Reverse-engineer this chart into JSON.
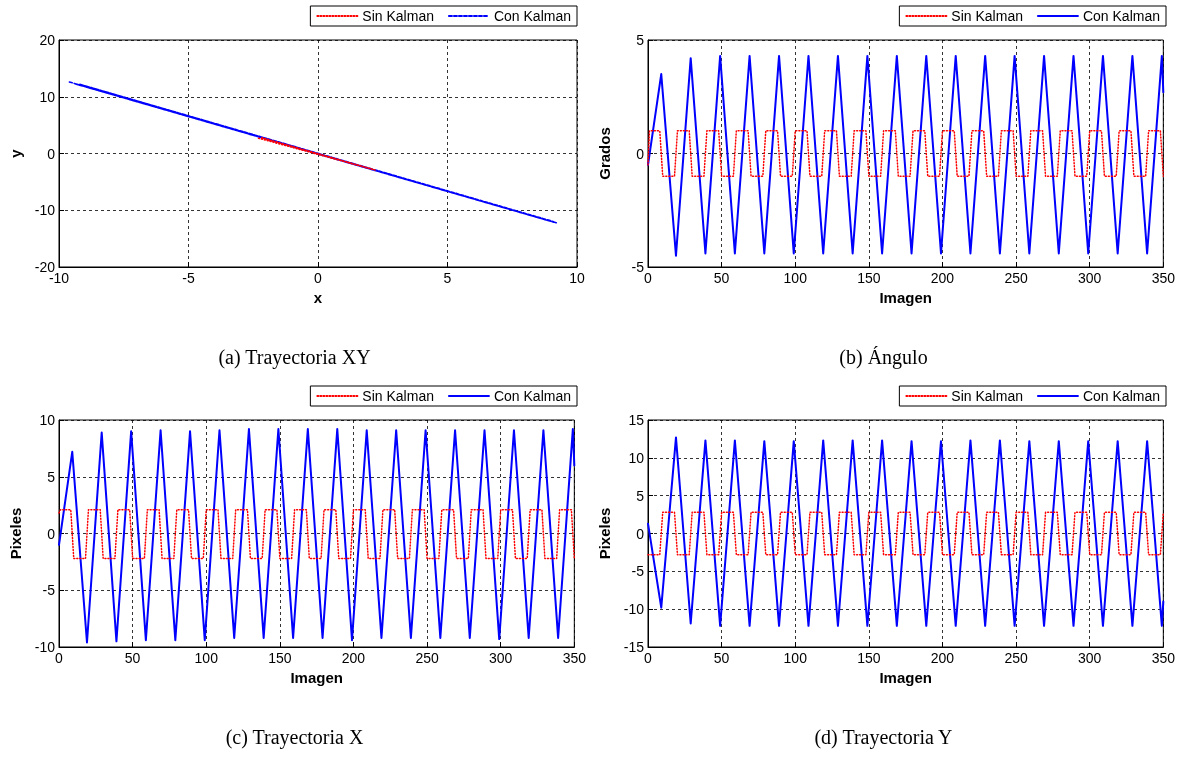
{
  "chart_data": [
    {
      "type": "line",
      "title": "(a) Trayectoria XY",
      "xlabel": "x",
      "ylabel": "y",
      "xlim": [
        -10,
        10
      ],
      "xticks": [
        -10,
        -5,
        0,
        5,
        10
      ],
      "ylim": [
        -20,
        20
      ],
      "yticks": [
        -20,
        -10,
        0,
        10,
        20
      ],
      "grid": true,
      "legend": "top right",
      "marker": "none",
      "series": [
        {
          "name": "Sin Kalman",
          "color": "#ff0000",
          "line_style": "dotted",
          "x": [
            -2.3,
            2.2,
            -2.2,
            2.1
          ],
          "values": [
            2.7,
            -2.9,
            2.8,
            -2.8
          ]
        },
        {
          "name": "Con Kalman",
          "color": "#0000ff",
          "line_style": "dashed",
          "x": [
            -9.6,
            9.2,
            -9.4,
            9.1,
            -9.3,
            9.2,
            -9.2,
            9.1
          ],
          "values": [
            12.6,
            -12.2,
            12.3,
            -12.1,
            12.2,
            -12.2,
            12.2,
            -12.0
          ]
        }
      ]
    },
    {
      "type": "line",
      "title": "(b) Ángulo",
      "xlabel": "Imagen",
      "ylabel": "Grados",
      "xlim": [
        0,
        350
      ],
      "xticks": [
        0,
        50,
        100,
        150,
        200,
        250,
        300,
        350
      ],
      "ylim": [
        -5,
        5
      ],
      "yticks": [
        -5,
        0,
        5
      ],
      "grid": true,
      "legend": "top right",
      "marker": "none",
      "series": [
        {
          "name": "Sin Kalman",
          "color": "#ff0000",
          "line_style": "dotted",
          "x": [
            0,
            1,
            8,
            10,
            18,
            20,
            28,
            30,
            38,
            40,
            48,
            50,
            58,
            60,
            68,
            70,
            78,
            80,
            88,
            90,
            98,
            100,
            108,
            110,
            118,
            120,
            128,
            130,
            138,
            140,
            148,
            150,
            158,
            160,
            168,
            170,
            178,
            180,
            188,
            190,
            198,
            200,
            208,
            210,
            218,
            220,
            228,
            230,
            238,
            240,
            248,
            250,
            258,
            260,
            268,
            270,
            278,
            280,
            288,
            290,
            298,
            300,
            308,
            310,
            318,
            320,
            328,
            330,
            338,
            340,
            348,
            350
          ],
          "values": [
            -0.5,
            1,
            1,
            -1,
            -1,
            1,
            1,
            -1,
            -1,
            1,
            1,
            -1,
            -1,
            1,
            1,
            -1,
            -1,
            1,
            1,
            -1,
            -1,
            1,
            1,
            -1,
            -1,
            1,
            1,
            -1,
            -1,
            1,
            1,
            -1,
            -1,
            1,
            1,
            -1,
            -1,
            1,
            1,
            -1,
            -1,
            1,
            1,
            -1,
            -1,
            1,
            1,
            -1,
            -1,
            1,
            1,
            -1,
            -1,
            1,
            1,
            -1,
            -1,
            1,
            1,
            -1,
            -1,
            1,
            1,
            -1,
            -1,
            1,
            1,
            -1,
            -1,
            1,
            1,
            -1
          ]
        },
        {
          "name": "Con Kalman",
          "color": "#0000ff",
          "line_style": "solid",
          "x": [
            0,
            9,
            19,
            29,
            39,
            49,
            59,
            69,
            79,
            89,
            99,
            109,
            119,
            129,
            139,
            149,
            159,
            169,
            179,
            189,
            199,
            209,
            219,
            229,
            239,
            249,
            259,
            269,
            279,
            289,
            299,
            309,
            319,
            329,
            339,
            349,
            350
          ],
          "values": [
            -0.5,
            3.5,
            -4.5,
            4.2,
            -4.4,
            4.3,
            -4.4,
            4.3,
            -4.4,
            4.3,
            -4.4,
            4.3,
            -4.4,
            4.3,
            -4.4,
            4.3,
            -4.4,
            4.3,
            -4.4,
            4.3,
            -4.4,
            4.3,
            -4.4,
            4.3,
            -4.4,
            4.3,
            -4.4,
            4.3,
            -4.4,
            4.3,
            -4.4,
            4.3,
            -4.4,
            4.3,
            -4.4,
            4.3,
            2.7
          ]
        }
      ]
    },
    {
      "type": "line",
      "title": "(c) Trayectoria X",
      "xlabel": "Imagen",
      "ylabel": "Pixeles",
      "xlim": [
        0,
        350
      ],
      "xticks": [
        0,
        50,
        100,
        150,
        200,
        250,
        300,
        350
      ],
      "ylim": [
        -10,
        10
      ],
      "yticks": [
        -10,
        -5,
        0,
        5,
        10
      ],
      "grid": true,
      "legend": "top right",
      "marker": "none",
      "series": [
        {
          "name": "Sin Kalman",
          "color": "#ff0000",
          "line_style": "dotted",
          "x": [
            0,
            1,
            8,
            10,
            18,
            20,
            28,
            30,
            38,
            40,
            48,
            50,
            58,
            60,
            68,
            70,
            78,
            80,
            88,
            90,
            98,
            100,
            108,
            110,
            118,
            120,
            128,
            130,
            138,
            140,
            148,
            150,
            158,
            160,
            168,
            170,
            178,
            180,
            188,
            190,
            198,
            200,
            208,
            210,
            218,
            220,
            228,
            230,
            238,
            240,
            248,
            250,
            258,
            260,
            268,
            270,
            278,
            280,
            288,
            290,
            298,
            300,
            308,
            310,
            318,
            320,
            328,
            330,
            338,
            340,
            348,
            350
          ],
          "values": [
            1.8,
            2.1,
            2.1,
            -2.2,
            -2.2,
            2.1,
            2.1,
            -2.2,
            -2.2,
            2.1,
            2.1,
            -2.2,
            -2.2,
            2.1,
            2.1,
            -2.2,
            -2.2,
            2.1,
            2.1,
            -2.2,
            -2.2,
            2.1,
            2.1,
            -2.2,
            -2.2,
            2.1,
            2.1,
            -2.2,
            -2.2,
            2.1,
            2.1,
            -2.2,
            -2.2,
            2.1,
            2.1,
            -2.2,
            -2.2,
            2.1,
            2.1,
            -2.2,
            -2.2,
            2.1,
            2.1,
            -2.2,
            -2.2,
            2.1,
            2.1,
            -2.2,
            -2.2,
            2.1,
            2.1,
            -2.2,
            -2.2,
            2.1,
            2.1,
            -2.2,
            -2.2,
            2.1,
            2.1,
            -2.2,
            -2.2,
            2.1,
            2.1,
            -2.2,
            -2.2,
            2.1,
            2.1,
            -2.2,
            -2.2,
            2.1,
            2.1,
            -2.2
          ]
        },
        {
          "name": "Con Kalman",
          "color": "#0000ff",
          "line_style": "solid",
          "x": [
            0,
            9,
            19,
            29,
            39,
            49,
            59,
            69,
            79,
            89,
            99,
            109,
            119,
            129,
            139,
            149,
            159,
            169,
            179,
            189,
            199,
            209,
            219,
            229,
            239,
            249,
            259,
            269,
            279,
            289,
            299,
            309,
            319,
            329,
            339,
            349,
            350
          ],
          "values": [
            -1,
            7.2,
            -9.6,
            8.9,
            -9.5,
            9.0,
            -9.4,
            9.1,
            -9.4,
            9.0,
            -9.4,
            9.1,
            -9.2,
            9.2,
            -9.2,
            9.2,
            -9.2,
            9.2,
            -9.2,
            9.2,
            -9.4,
            9.1,
            -9.2,
            9.1,
            -9.2,
            9.1,
            -9.2,
            9.1,
            -9.2,
            9.1,
            -9.3,
            9.1,
            -9.2,
            9.1,
            -9.2,
            9.2,
            6.0
          ]
        }
      ]
    },
    {
      "type": "line",
      "title": "(d) Trayectoria Y",
      "xlabel": "Imagen",
      "ylabel": "Pixeles",
      "xlim": [
        0,
        350
      ],
      "xticks": [
        0,
        50,
        100,
        150,
        200,
        250,
        300,
        350
      ],
      "ylim": [
        -15,
        15
      ],
      "yticks": [
        -15,
        -10,
        -5,
        0,
        5,
        10,
        15
      ],
      "grid": true,
      "legend": "top right",
      "marker": "none",
      "series": [
        {
          "name": "Sin Kalman",
          "color": "#ff0000",
          "line_style": "dotted",
          "x": [
            0,
            1,
            8,
            10,
            18,
            20,
            28,
            30,
            38,
            40,
            48,
            50,
            58,
            60,
            68,
            70,
            78,
            80,
            88,
            90,
            98,
            100,
            108,
            110,
            118,
            120,
            128,
            130,
            138,
            140,
            148,
            150,
            158,
            160,
            168,
            170,
            178,
            180,
            188,
            190,
            198,
            200,
            208,
            210,
            218,
            220,
            228,
            230,
            238,
            240,
            248,
            250,
            258,
            260,
            268,
            270,
            278,
            280,
            288,
            290,
            298,
            300,
            308,
            310,
            318,
            320,
            328,
            330,
            338,
            340,
            348,
            350
          ],
          "values": [
            -2.8,
            -2.8,
            -2.8,
            2.8,
            2.8,
            -2.8,
            -2.8,
            2.8,
            2.8,
            -2.8,
            -2.8,
            2.8,
            2.8,
            -2.8,
            -2.8,
            2.8,
            2.8,
            -2.8,
            -2.8,
            2.8,
            2.8,
            -2.8,
            -2.8,
            2.8,
            2.8,
            -2.8,
            -2.8,
            2.8,
            2.8,
            -2.8,
            -2.8,
            2.8,
            2.8,
            -2.8,
            -2.8,
            2.8,
            2.8,
            -2.8,
            -2.8,
            2.8,
            2.8,
            -2.8,
            -2.8,
            2.8,
            2.8,
            -2.8,
            -2.8,
            2.8,
            2.8,
            -2.8,
            -2.8,
            2.8,
            2.8,
            -2.8,
            -2.8,
            2.8,
            2.8,
            -2.8,
            -2.8,
            2.8,
            2.8,
            -2.8,
            -2.8,
            2.8,
            2.8,
            -2.8,
            -2.8,
            2.8,
            2.8,
            -2.8,
            -2.8,
            2.8
          ]
        },
        {
          "name": "Con Kalman",
          "color": "#0000ff",
          "line_style": "solid",
          "x": [
            0,
            9,
            19,
            29,
            39,
            49,
            59,
            69,
            79,
            89,
            99,
            109,
            119,
            129,
            139,
            149,
            159,
            169,
            179,
            189,
            199,
            209,
            219,
            229,
            239,
            249,
            259,
            269,
            279,
            289,
            299,
            309,
            319,
            329,
            339,
            349,
            350
          ],
          "values": [
            1.3,
            -9.8,
            12.7,
            -11.9,
            12.3,
            -12.2,
            12.3,
            -12.2,
            12.2,
            -12.2,
            12.2,
            -12.2,
            12.3,
            -12.2,
            12.3,
            -12.2,
            12.3,
            -12.2,
            12.2,
            -12.2,
            12.2,
            -12.2,
            12.3,
            -12.2,
            12.3,
            -12.2,
            12.2,
            -12.2,
            12.2,
            -12.2,
            12.2,
            -12.2,
            12.2,
            -12.2,
            12.2,
            -12.2,
            -9
          ]
        }
      ]
    }
  ]
}
